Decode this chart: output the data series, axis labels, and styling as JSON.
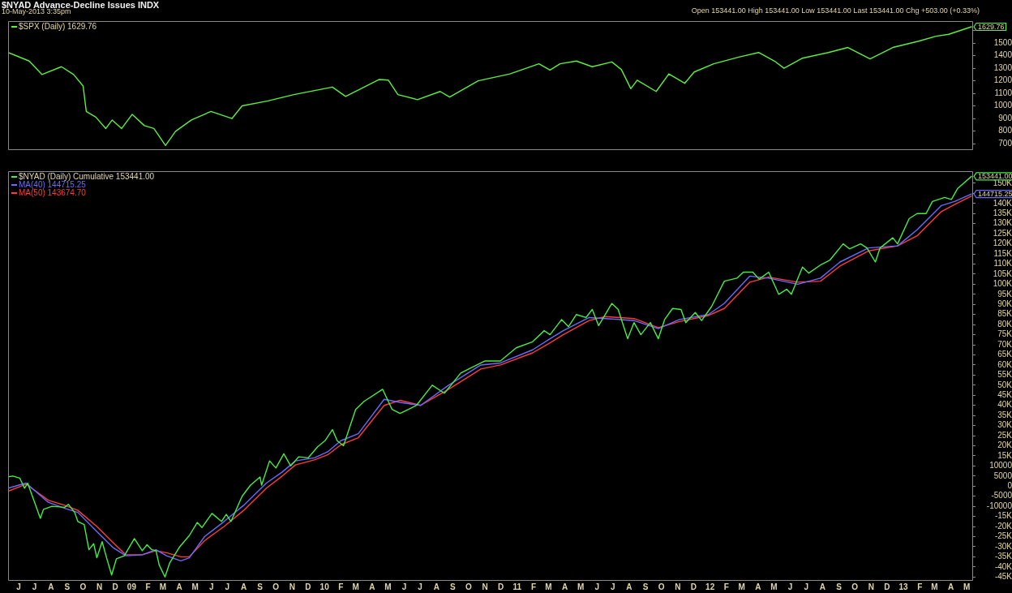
{
  "chart_data": [
    {
      "type": "line",
      "title": "$NYAD Advance-Decline Issues INDX",
      "subtitle": "10-May-2013 3:35pm",
      "annotations": [
        "Open 153441.00 High 153441.00 Low 153441.00 Last 153441.00 Chg +503.00 (+0.33%)",
        {
          "text": "1629.76",
          "x": "2013-05-10",
          "y": 1629.76
        }
      ],
      "series": [
        {
          "name": "$SPX (Daily) 1629.76",
          "color": "#5cf03c",
          "x": [
            "2008-05-12",
            "2008-06-21",
            "2008-07-15",
            "2008-08-21",
            "2008-09-13",
            "2008-10-01",
            "2008-10-07",
            "2008-10-25",
            "2008-11-13",
            "2008-11-25",
            "2008-12-13",
            "2009-01-02",
            "2009-01-25",
            "2009-02-12",
            "2009-03-06",
            "2009-03-25",
            "2009-04-24",
            "2009-05-31",
            "2009-07-10",
            "2009-07-29",
            "2009-09-16",
            "2009-11-04",
            "2010-01-16",
            "2010-02-10",
            "2010-04-14",
            "2010-05-02",
            "2010-05-20",
            "2010-06-26",
            "2010-08-08",
            "2010-08-26",
            "2010-10-19",
            "2010-12-18",
            "2011-02-11",
            "2011-03-04",
            "2011-03-23",
            "2011-04-23",
            "2011-05-23",
            "2011-06-29",
            "2011-07-17",
            "2011-08-04",
            "2011-08-16",
            "2011-09-21",
            "2011-10-15",
            "2011-11-14",
            "2011-12-02",
            "2012-01-08",
            "2012-02-26",
            "2012-04-02",
            "2012-05-02",
            "2012-05-20",
            "2012-06-24",
            "2012-08-12",
            "2012-09-18",
            "2012-10-30",
            "2012-12-12",
            "2013-01-30",
            "2013-03-04",
            "2013-03-28",
            "2013-05-10"
          ],
          "values": [
            1425,
            1357,
            1250,
            1312,
            1250,
            1159,
            956,
            911,
            820,
            888,
            820,
            933,
            843,
            820,
            685,
            798,
            888,
            956,
            900,
            1000,
            1040,
            1090,
            1150,
            1075,
            1210,
            1205,
            1090,
            1050,
            1115,
            1070,
            1200,
            1255,
            1335,
            1285,
            1335,
            1357,
            1312,
            1350,
            1290,
            1137,
            1205,
            1115,
            1255,
            1180,
            1270,
            1335,
            1390,
            1425,
            1357,
            1300,
            1380,
            1425,
            1465,
            1374,
            1465,
            1515,
            1555,
            1570,
            1629.76
          ]
        }
      ],
      "xlim": [
        "2008-05-12",
        "2013-05-13"
      ],
      "ylim": [
        655,
        1675
      ],
      "yticks": [
        700,
        800,
        900,
        1000,
        1100,
        1200,
        1300,
        1400,
        1500,
        {
          "value": 1600,
          "label": null
        }
      ],
      "tick_labels": "y",
      "legend": "top left",
      "marker": "none"
    },
    {
      "type": "line",
      "annotations": [
        {
          "text": "153441.00",
          "x": "2013-05-10",
          "y": 153441
        },
        {
          "text": "144715.25",
          "x": "2013-05-10",
          "y": 144715.25
        }
      ],
      "series": [
        {
          "name": "$NYAD (Daily) Cumulative 153441.00",
          "color": "#44ee44",
          "x": [
            "2008-05-12",
            "2008-05-21",
            "2008-06-03",
            "2008-06-12",
            "2008-06-18",
            "2008-06-27",
            "2008-07-12",
            "2008-07-18",
            "2008-08-03",
            "2008-08-27",
            "2008-09-03",
            "2008-09-15",
            "2008-09-21",
            "2008-10-03",
            "2008-10-12",
            "2008-10-21",
            "2008-10-27",
            "2008-11-06",
            "2008-11-15",
            "2008-11-24",
            "2008-12-03",
            "2008-12-18",
            "2009-01-06",
            "2009-01-21",
            "2009-01-30",
            "2009-02-08",
            "2009-02-16",
            "2009-02-22",
            "2009-03-05",
            "2009-03-14",
            "2009-04-02",
            "2009-04-20",
            "2009-05-05",
            "2009-05-14",
            "2009-06-02",
            "2009-06-20",
            "2009-06-29",
            "2009-07-08",
            "2009-07-29",
            "2009-08-14",
            "2009-09-01",
            "2009-09-04",
            "2009-09-19",
            "2009-10-01",
            "2009-10-16",
            "2009-10-29",
            "2009-11-13",
            "2009-12-01",
            "2009-12-19",
            "2010-01-02",
            "2010-01-16",
            "2010-01-25",
            "2010-02-06",
            "2010-02-15",
            "2010-03-01",
            "2010-03-17",
            "2010-04-21",
            "2010-05-09",
            "2010-05-24",
            "2010-06-09",
            "2010-06-24",
            "2010-07-24",
            "2010-08-16",
            "2010-09-16",
            "2010-10-01",
            "2010-11-01",
            "2010-11-30",
            "2010-12-30",
            "2011-01-30",
            "2011-02-21",
            "2011-03-04",
            "2011-03-26",
            "2011-04-08",
            "2011-04-23",
            "2011-05-11",
            "2011-05-23",
            "2011-06-04",
            "2011-06-29",
            "2011-07-11",
            "2011-07-29",
            "2011-08-10",
            "2011-08-23",
            "2011-09-10",
            "2011-09-25",
            "2011-10-07",
            "2011-10-22",
            "2011-11-07",
            "2011-11-16",
            "2011-12-04",
            "2011-12-16",
            "2012-01-04",
            "2012-01-28",
            "2012-02-21",
            "2012-03-04",
            "2012-03-22",
            "2012-04-03",
            "2012-04-21",
            "2012-05-10",
            "2012-05-25",
            "2012-06-03",
            "2012-06-24",
            "2012-07-06",
            "2012-07-28",
            "2012-08-15",
            "2012-09-09",
            "2012-09-21",
            "2012-10-12",
            "2012-10-24",
            "2012-11-09",
            "2012-11-18",
            "2012-12-12",
            "2012-12-21",
            "2013-01-12",
            "2013-01-27",
            "2013-02-13",
            "2013-02-25",
            "2013-03-20",
            "2013-04-02",
            "2013-04-14",
            "2013-05-10"
          ],
          "values": [
            4600,
            5000,
            4000,
            -1000,
            1500,
            -5000,
            -16000,
            -11500,
            -10000,
            -10500,
            -9000,
            -13000,
            -17500,
            -19000,
            -31500,
            -28500,
            -35500,
            -27500,
            -36000,
            -44000,
            -36000,
            -34500,
            -26000,
            -32000,
            -29000,
            -31500,
            -32000,
            -39000,
            -45000,
            -38000,
            -30000,
            -24500,
            -18000,
            -20500,
            -13500,
            -17500,
            -14000,
            -17500,
            -5000,
            500,
            4500,
            500,
            12500,
            9000,
            16000,
            10000,
            14500,
            14000,
            19500,
            22500,
            28000,
            22500,
            20000,
            27000,
            38000,
            42000,
            48000,
            38000,
            36000,
            38000,
            40000,
            50000,
            46000,
            56000,
            58000,
            62000,
            62000,
            68500,
            71500,
            77000,
            75000,
            82500,
            79000,
            85000,
            83500,
            87500,
            79500,
            90500,
            87500,
            73000,
            81000,
            75000,
            81000,
            73000,
            82500,
            88000,
            87500,
            81000,
            86000,
            82000,
            89000,
            101500,
            103000,
            106000,
            106000,
            102500,
            106000,
            95000,
            97500,
            95000,
            108500,
            105500,
            109500,
            112000,
            120000,
            117500,
            120000,
            118000,
            111000,
            118000,
            123000,
            120000,
            132500,
            135000,
            135000,
            141000,
            143000,
            142000,
            147500,
            153441
          ],
          "line_style": "solid"
        },
        {
          "name": "MA(40) 144715.25",
          "color": "#6a6aff",
          "x": [
            "2008-05-12",
            "2008-06-15",
            "2008-07-27",
            "2008-08-27",
            "2008-09-21",
            "2008-10-27",
            "2008-11-27",
            "2008-12-21",
            "2009-01-21",
            "2009-02-16",
            "2009-03-08",
            "2009-04-04",
            "2009-04-20",
            "2009-05-19",
            "2009-06-25",
            "2009-08-01",
            "2009-09-13",
            "2009-10-13",
            "2009-11-07",
            "2009-12-13",
            "2010-01-07",
            "2010-02-01",
            "2010-03-06",
            "2010-04-24",
            "2010-05-24",
            "2010-07-02",
            "2010-08-24",
            "2010-10-24",
            "2010-11-30",
            "2011-01-30",
            "2011-03-04",
            "2011-03-29",
            "2011-05-17",
            "2011-06-17",
            "2011-08-10",
            "2011-09-25",
            "2011-11-04",
            "2011-12-29",
            "2012-01-28",
            "2012-03-16",
            "2012-04-21",
            "2012-06-15",
            "2012-07-28",
            "2012-09-03",
            "2012-10-27",
            "2012-12-21",
            "2013-01-27",
            "2013-03-14",
            "2013-04-08",
            "2013-05-10"
          ],
          "values": [
            -1000,
            1500,
            -8000,
            -11000,
            -13000,
            -22500,
            -30500,
            -34500,
            -34000,
            -31500,
            -34500,
            -37000,
            -35500,
            -25000,
            -17500,
            -9500,
            1500,
            7000,
            12500,
            14000,
            17000,
            22500,
            26000,
            43000,
            41500,
            40000,
            50000,
            60000,
            61000,
            67500,
            73000,
            77000,
            83500,
            83000,
            82000,
            78000,
            82500,
            85000,
            90500,
            104000,
            103000,
            100000,
            103000,
            111000,
            118000,
            119000,
            127000,
            139000,
            141000,
            144715.25
          ]
        },
        {
          "name": "MA(50) 143674.70",
          "color": "#ff3b3b",
          "x": [
            "2008-05-12",
            "2008-06-15",
            "2008-07-27",
            "2008-08-27",
            "2008-09-21",
            "2008-10-27",
            "2008-11-27",
            "2008-12-21",
            "2009-01-21",
            "2009-02-16",
            "2009-03-08",
            "2009-04-04",
            "2009-04-20",
            "2009-05-19",
            "2009-06-25",
            "2009-08-01",
            "2009-09-13",
            "2009-10-13",
            "2009-11-07",
            "2009-12-13",
            "2010-01-07",
            "2010-02-01",
            "2010-03-06",
            "2010-04-24",
            "2010-05-24",
            "2010-07-02",
            "2010-08-24",
            "2010-10-24",
            "2010-11-30",
            "2011-01-30",
            "2011-03-04",
            "2011-03-29",
            "2011-05-17",
            "2011-06-17",
            "2011-08-10",
            "2011-09-25",
            "2011-11-04",
            "2011-12-29",
            "2012-01-28",
            "2012-03-16",
            "2012-04-21",
            "2012-06-15",
            "2012-07-28",
            "2012-09-03",
            "2012-10-27",
            "2012-12-21",
            "2013-01-27",
            "2013-03-14",
            "2013-04-08",
            "2013-05-10"
          ],
          "values": [
            -2500,
            1000,
            -7000,
            -9500,
            -12000,
            -20000,
            -28000,
            -34000,
            -34000,
            -32000,
            -33000,
            -35000,
            -35000,
            -27000,
            -20000,
            -12000,
            -1000,
            5000,
            10500,
            13000,
            15500,
            20500,
            24000,
            40000,
            42500,
            40000,
            48000,
            58000,
            60000,
            66000,
            71000,
            75000,
            82000,
            84000,
            83000,
            78500,
            81500,
            84500,
            88000,
            101000,
            103500,
            101000,
            101500,
            109000,
            116500,
            119000,
            124000,
            136000,
            139500,
            143674.7
          ]
        }
      ],
      "xlim": [
        "2008-05-12",
        "2013-05-13"
      ],
      "xticks": [
        {
          "value": "2008-06",
          "label": "J"
        },
        {
          "value": "2008-07",
          "label": "J"
        },
        {
          "value": "2008-08",
          "label": "A"
        },
        {
          "value": "2008-09",
          "label": "S"
        },
        {
          "value": "2008-10",
          "label": "O"
        },
        {
          "value": "2008-11",
          "label": "N"
        },
        {
          "value": "2008-12",
          "label": "D"
        },
        {
          "value": "2009-01",
          "label": "09"
        },
        {
          "value": "2009-02",
          "label": "F"
        },
        {
          "value": "2009-03",
          "label": "M"
        },
        {
          "value": "2009-04",
          "label": "A"
        },
        {
          "value": "2009-05",
          "label": "M"
        },
        {
          "value": "2009-06",
          "label": "J"
        },
        {
          "value": "2009-07",
          "label": "J"
        },
        {
          "value": "2009-08",
          "label": "A"
        },
        {
          "value": "2009-09",
          "label": "S"
        },
        {
          "value": "2009-10",
          "label": "O"
        },
        {
          "value": "2009-11",
          "label": "N"
        },
        {
          "value": "2009-12",
          "label": "D"
        },
        {
          "value": "2010-01",
          "label": "10"
        },
        {
          "value": "2010-02",
          "label": "F"
        },
        {
          "value": "2010-03",
          "label": "M"
        },
        {
          "value": "2010-04",
          "label": "A"
        },
        {
          "value": "2010-05",
          "label": "M"
        },
        {
          "value": "2010-06",
          "label": "J"
        },
        {
          "value": "2010-07",
          "label": "J"
        },
        {
          "value": "2010-08",
          "label": "A"
        },
        {
          "value": "2010-09",
          "label": "S"
        },
        {
          "value": "2010-10",
          "label": "O"
        },
        {
          "value": "2010-11",
          "label": "N"
        },
        {
          "value": "2010-12",
          "label": "D"
        },
        {
          "value": "2011-01",
          "label": "11"
        },
        {
          "value": "2011-02",
          "label": "F"
        },
        {
          "value": "2011-03",
          "label": "M"
        },
        {
          "value": "2011-04",
          "label": "A"
        },
        {
          "value": "2011-05",
          "label": "M"
        },
        {
          "value": "2011-06",
          "label": "J"
        },
        {
          "value": "2011-07",
          "label": "J"
        },
        {
          "value": "2011-08",
          "label": "A"
        },
        {
          "value": "2011-09",
          "label": "S"
        },
        {
          "value": "2011-10",
          "label": "O"
        },
        {
          "value": "2011-11",
          "label": "N"
        },
        {
          "value": "2011-12",
          "label": "D"
        },
        {
          "value": "2012-01",
          "label": "12"
        },
        {
          "value": "2012-02",
          "label": "F"
        },
        {
          "value": "2012-03",
          "label": "M"
        },
        {
          "value": "2012-04",
          "label": "A"
        },
        {
          "value": "2012-05",
          "label": "M"
        },
        {
          "value": "2012-06",
          "label": "J"
        },
        {
          "value": "2012-07",
          "label": "J"
        },
        {
          "value": "2012-08",
          "label": "A"
        },
        {
          "value": "2012-09",
          "label": "S"
        },
        {
          "value": "2012-10",
          "label": "O"
        },
        {
          "value": "2012-11",
          "label": "N"
        },
        {
          "value": "2012-12",
          "label": "D"
        },
        {
          "value": "2013-01",
          "label": "13"
        },
        {
          "value": "2013-02",
          "label": "F"
        },
        {
          "value": "2013-03",
          "label": "M"
        },
        {
          "value": "2013-04",
          "label": "A"
        },
        {
          "value": "2013-05",
          "label": "M"
        }
      ],
      "ylim": [
        -46500,
        156000
      ],
      "yticks": [
        {
          "value": -45000,
          "label": "-45K"
        },
        {
          "value": -40000,
          "label": "-40K"
        },
        {
          "value": -35000,
          "label": "-35K"
        },
        {
          "value": -30000,
          "label": "-30K"
        },
        {
          "value": -25000,
          "label": "-25K"
        },
        {
          "value": -20000,
          "label": "-20K"
        },
        {
          "value": -15000,
          "label": "-15K"
        },
        -10000,
        -5000,
        0,
        5000,
        10000,
        {
          "value": 15000,
          "label": "15K"
        },
        {
          "value": 20000,
          "label": "20K"
        },
        {
          "value": 25000,
          "label": "25K"
        },
        {
          "value": 30000,
          "label": "30K"
        },
        {
          "value": 35000,
          "label": "35K"
        },
        {
          "value": 40000,
          "label": "40K"
        },
        {
          "value": 45000,
          "label": "45K"
        },
        {
          "value": 50000,
          "label": "50K"
        },
        {
          "value": 55000,
          "label": "55K"
        },
        {
          "value": 60000,
          "label": "60K"
        },
        {
          "value": 65000,
          "label": "65K"
        },
        {
          "value": 70000,
          "label": "70K"
        },
        {
          "value": 75000,
          "label": "75K"
        },
        {
          "value": 80000,
          "label": "80K"
        },
        {
          "value": 85000,
          "label": "85K"
        },
        {
          "value": 90000,
          "label": "90K"
        },
        {
          "value": 95000,
          "label": "95K"
        },
        {
          "value": 100000,
          "label": "100K"
        },
        {
          "value": 105000,
          "label": "105K"
        },
        {
          "value": 110000,
          "label": "110K"
        },
        {
          "value": 115000,
          "label": "115K"
        },
        {
          "value": 120000,
          "label": "120K"
        },
        {
          "value": 125000,
          "label": "125K"
        },
        {
          "value": 130000,
          "label": "130K"
        },
        {
          "value": 135000,
          "label": "135K"
        },
        {
          "value": 140000,
          "label": "140K"
        },
        {
          "value": 145000,
          "label": null
        },
        {
          "value": 150000,
          "label": "150K"
        }
      ],
      "legend": "top left",
      "marker": "none"
    }
  ]
}
